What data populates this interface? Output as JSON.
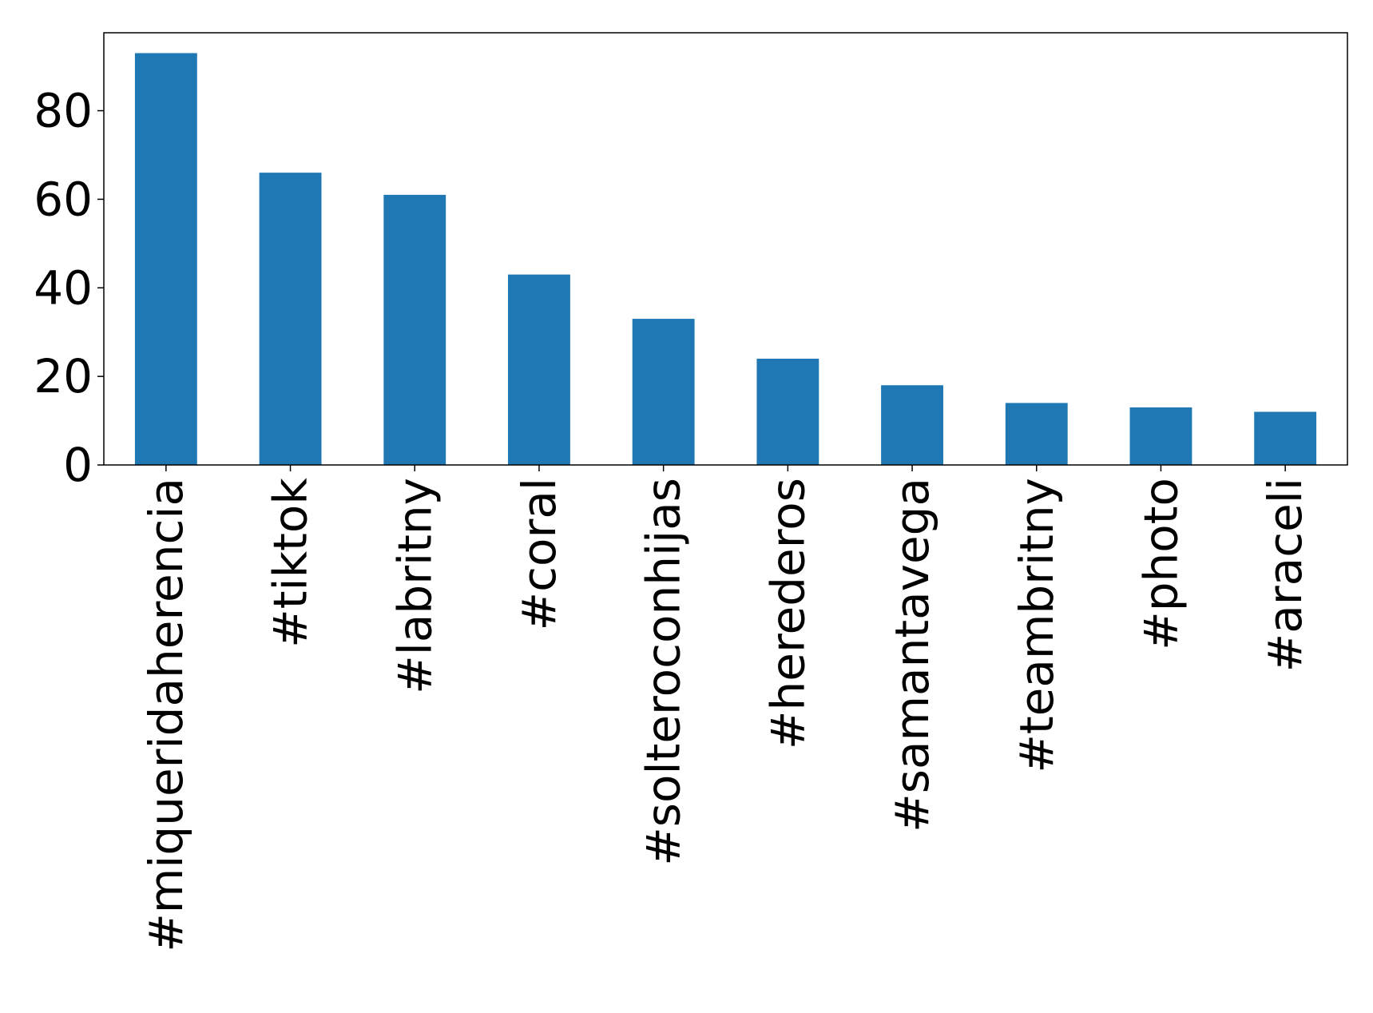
{
  "chart_data": {
    "type": "bar",
    "title": "",
    "xlabel": "",
    "ylabel": "",
    "categories": [
      "#miqueridaherencia",
      "#tiktok",
      "#labritny",
      "#coral",
      "#solteroconhijas",
      "#herederos",
      "#samantavega",
      "#teambritny",
      "#photo",
      "#araceli"
    ],
    "values": [
      93,
      66,
      61,
      43,
      33,
      24,
      18,
      14,
      13,
      12
    ],
    "ylim": [
      0,
      97.6
    ],
    "yticks": [
      0,
      20,
      40,
      60,
      80
    ],
    "grid": false,
    "legend": "none",
    "bar_color": "#1f77b4"
  }
}
